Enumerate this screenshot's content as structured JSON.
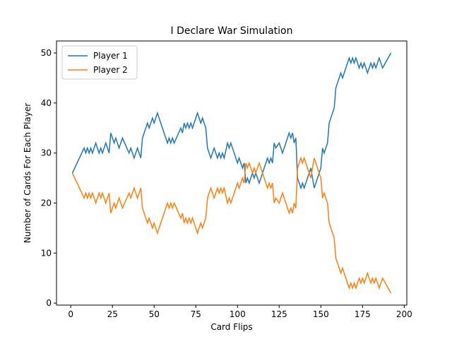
{
  "chart_data": {
    "type": "line",
    "title": "I Declare War Simulation",
    "x_label": "Card Flips",
    "y_label": "Number of Cards For Each Player",
    "x": [
      1,
      8,
      9,
      10,
      11,
      12,
      13,
      15,
      17,
      18,
      19,
      21,
      23,
      24,
      26,
      27,
      29,
      31,
      35,
      36,
      37,
      38,
      40,
      42,
      43,
      46,
      47,
      49,
      50,
      52,
      58,
      59,
      60,
      61,
      62,
      66,
      67,
      68,
      69,
      70,
      71,
      72,
      73,
      76,
      78,
      79,
      81,
      82,
      84,
      86,
      88,
      89,
      90,
      91,
      92,
      94,
      95,
      96,
      100,
      101,
      103,
      104,
      105,
      106,
      107,
      109,
      110,
      111,
      113,
      118,
      119,
      120,
      121,
      122,
      123,
      125,
      127,
      131,
      132,
      133,
      134,
      135,
      136,
      138,
      139,
      140,
      142,
      144,
      145,
      146,
      150,
      151,
      152,
      154,
      155,
      158,
      159,
      162,
      163,
      167,
      168,
      169,
      170,
      171,
      173,
      174,
      175,
      176,
      177,
      178,
      180,
      181,
      182,
      183,
      185,
      187,
      192
    ],
    "series": [
      {
        "name": "Player 1",
        "color": "#1f77b4",
        "values": [
          26,
          31,
          30,
          31,
          30,
          31,
          30,
          32,
          30,
          31,
          30,
          32,
          30,
          34,
          32,
          33,
          31,
          33,
          30,
          31,
          30,
          29,
          31,
          29,
          33,
          36,
          35,
          37,
          36,
          38,
          32,
          33,
          32,
          33,
          32,
          35,
          34,
          36,
          35,
          36,
          35,
          36,
          35,
          38,
          36,
          37,
          35,
          31,
          29,
          31,
          29,
          30,
          29,
          30,
          29,
          32,
          31,
          32,
          28,
          29,
          27,
          28,
          24,
          25,
          24,
          26,
          25,
          26,
          24,
          29,
          28,
          29,
          28,
          32,
          31,
          32,
          30,
          34,
          33,
          34,
          32,
          33,
          25,
          23,
          24,
          23,
          25,
          27,
          25,
          23,
          27,
          31,
          30,
          32,
          36,
          39,
          43,
          46,
          45,
          49,
          48,
          49,
          48,
          49,
          47,
          48,
          47,
          48,
          47,
          46,
          48,
          47,
          48,
          47,
          49,
          47,
          50
        ]
      },
      {
        "name": "Player 2",
        "color": "#ff7f0e",
        "values": [
          26,
          21,
          22,
          21,
          22,
          21,
          22,
          20,
          22,
          21,
          22,
          20,
          22,
          18,
          20,
          19,
          21,
          19,
          22,
          21,
          22,
          23,
          21,
          23,
          19,
          16,
          17,
          15,
          16,
          14,
          20,
          19,
          20,
          19,
          20,
          17,
          18,
          16,
          17,
          16,
          17,
          16,
          17,
          14,
          16,
          15,
          17,
          21,
          23,
          21,
          23,
          22,
          23,
          22,
          23,
          20,
          21,
          20,
          24,
          23,
          25,
          24,
          28,
          27,
          28,
          26,
          27,
          26,
          28,
          23,
          24,
          23,
          24,
          20,
          21,
          20,
          22,
          18,
          19,
          18,
          20,
          19,
          27,
          29,
          28,
          29,
          27,
          25,
          27,
          29,
          25,
          21,
          22,
          20,
          16,
          13,
          9,
          6,
          7,
          3,
          4,
          3,
          4,
          3,
          5,
          4,
          5,
          4,
          5,
          6,
          4,
          5,
          4,
          5,
          3,
          5,
          2
        ]
      }
    ],
    "xlim": [
      -8.55,
      201.55
    ],
    "xticks": [
      0,
      25,
      50,
      75,
      100,
      125,
      150,
      175,
      200
    ],
    "ylim": [
      -0.4,
      52.4
    ],
    "yticks": [
      0,
      10,
      20,
      30,
      40,
      50
    ],
    "legend": "upper left"
  }
}
